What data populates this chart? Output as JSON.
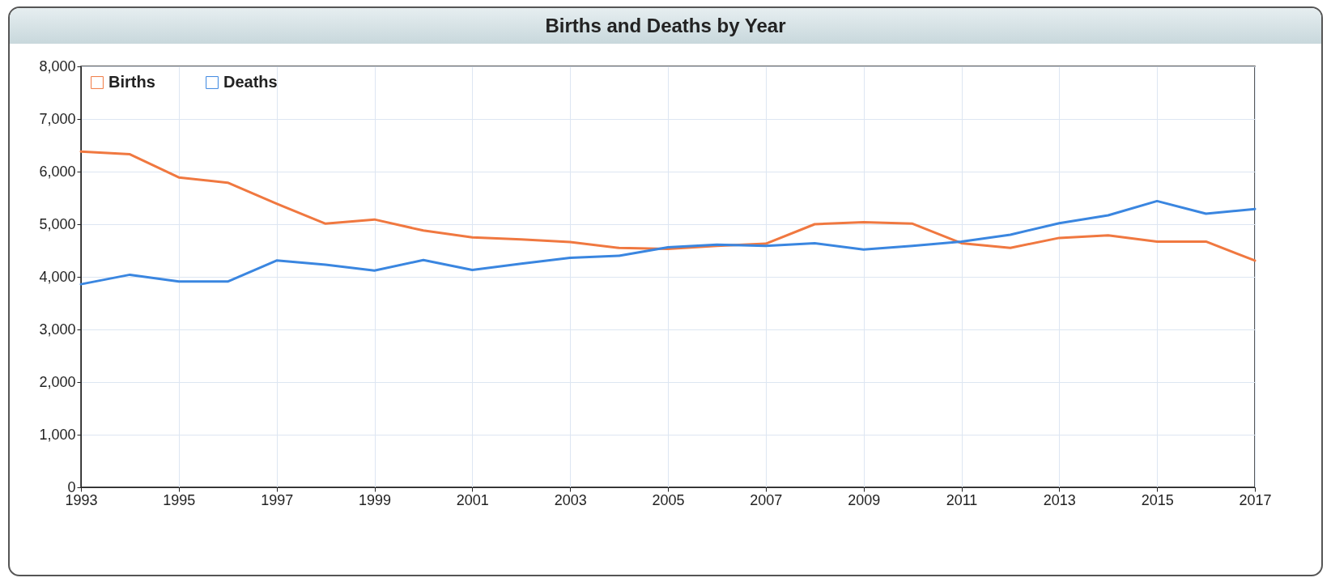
{
  "chart_data": {
    "type": "line",
    "title": "Births and Deaths by Year",
    "x": [
      1993,
      1994,
      1995,
      1996,
      1997,
      1998,
      1999,
      2000,
      2001,
      2002,
      2003,
      2004,
      2005,
      2006,
      2007,
      2008,
      2009,
      2010,
      2011,
      2012,
      2013,
      2014,
      2015,
      2016,
      2017
    ],
    "series": [
      {
        "name": "Births",
        "color": "#f07840",
        "values": [
          6380,
          6330,
          5890,
          5790,
          5390,
          5010,
          5090,
          4880,
          4750,
          4710,
          4660,
          4550,
          4530,
          4590,
          4630,
          5000,
          5040,
          5010,
          4640,
          4550,
          4740,
          4790,
          4670,
          4670,
          4310
        ]
      },
      {
        "name": "Deaths",
        "color": "#3a86e0",
        "values": [
          3860,
          4040,
          3910,
          3910,
          4310,
          4230,
          4120,
          4320,
          4130,
          4250,
          4360,
          4400,
          4560,
          4610,
          4590,
          4640,
          4520,
          4590,
          4670,
          4800,
          5020,
          5170,
          5440,
          5200,
          5290
        ]
      }
    ],
    "xlim": [
      1993,
      2017
    ],
    "xticks": [
      1993,
      1995,
      1997,
      1999,
      2001,
      2003,
      2005,
      2007,
      2009,
      2011,
      2013,
      2015,
      2017
    ],
    "ylim": [
      0,
      8000
    ],
    "yticks": [
      0,
      {
        "value": 1000,
        "label": "1,000"
      },
      {
        "value": 2000,
        "label": "2,000"
      },
      {
        "value": 3000,
        "label": "3,000"
      },
      {
        "value": 4000,
        "label": "4,000"
      },
      {
        "value": 5000,
        "label": "5,000"
      },
      {
        "value": 6000,
        "label": "6,000"
      },
      {
        "value": 7000,
        "label": "7,000"
      },
      {
        "value": 8000,
        "label": "8,000"
      }
    ],
    "grid": true,
    "legend": "top left",
    "marker": "none",
    "line_style": "solid"
  }
}
